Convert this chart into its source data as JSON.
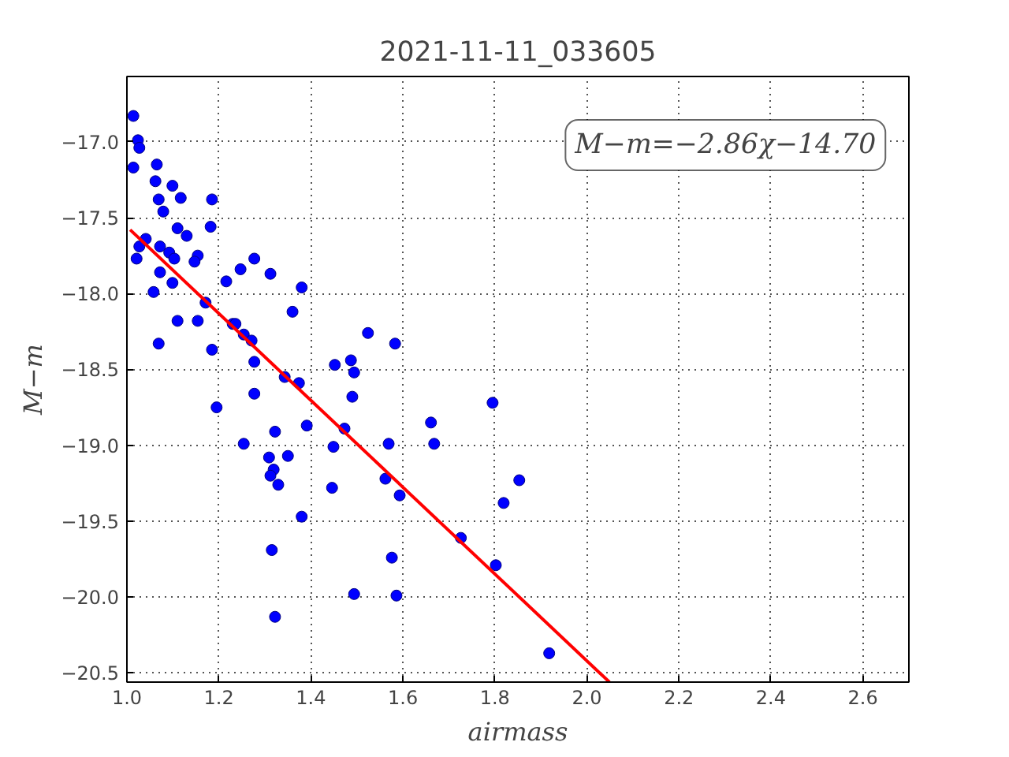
{
  "chart_data": {
    "type": "scatter",
    "title": "2021-11-11_033605",
    "xlabel": "airmass",
    "ylabel": "M−m",
    "xlim": [
      1.0,
      2.7
    ],
    "ylim": [
      -20.56,
      -16.57
    ],
    "xticks": [
      {
        "value": 1.0,
        "label": "1.0"
      },
      {
        "value": 1.2,
        "label": "1.2"
      },
      {
        "value": 1.4,
        "label": "1.4"
      },
      {
        "value": 1.6,
        "label": "1.6"
      },
      {
        "value": 1.8,
        "label": "1.8"
      },
      {
        "value": 2.0,
        "label": "2.0"
      },
      {
        "value": 2.2,
        "label": "2.2"
      },
      {
        "value": 2.4,
        "label": "2.4"
      },
      {
        "value": 2.6,
        "label": "2.6"
      }
    ],
    "yticks": [
      {
        "value": -17.0,
        "label": "−17.0"
      },
      {
        "value": -17.5,
        "label": "−17.5"
      },
      {
        "value": -18.0,
        "label": "−18.0"
      },
      {
        "value": -18.5,
        "label": "−18.5"
      },
      {
        "value": -19.0,
        "label": "−19.0"
      },
      {
        "value": -19.5,
        "label": "−19.5"
      },
      {
        "value": -20.0,
        "label": "−20.0"
      },
      {
        "value": -20.5,
        "label": "−20.5"
      }
    ],
    "grid": true,
    "annotations": [
      "M−m=−2.86χ−14.70"
    ],
    "series": [
      {
        "color": "#0000ff",
        "marker": "circle",
        "x": [
          1.014,
          1.024,
          1.027,
          1.014,
          1.065,
          1.062,
          1.099,
          1.069,
          1.079,
          1.117,
          1.185,
          1.11,
          1.182,
          1.13,
          1.041,
          1.027,
          1.021,
          1.072,
          1.092,
          1.103,
          1.154,
          1.147,
          1.072,
          1.099,
          1.058,
          1.216,
          1.247,
          1.277,
          1.312,
          1.38,
          1.171,
          1.11,
          1.154,
          1.185,
          1.069,
          1.23,
          1.236,
          1.254,
          1.271,
          1.36,
          1.524,
          1.583,
          1.277,
          1.343,
          1.374,
          1.452,
          1.487,
          1.494,
          1.277,
          1.195,
          1.49,
          1.391,
          1.473,
          1.661,
          1.795,
          1.322,
          1.254,
          1.449,
          1.569,
          1.668,
          1.309,
          1.35,
          1.319,
          1.312,
          1.329,
          1.562,
          1.593,
          1.446,
          1.853,
          1.819,
          1.38,
          1.726,
          1.315,
          1.576,
          1.802,
          1.494,
          1.586,
          1.322,
          1.918
        ],
        "values": [
          -16.83,
          -16.99,
          -17.04,
          -17.17,
          -17.15,
          -17.26,
          -17.29,
          -17.38,
          -17.46,
          -17.37,
          -17.38,
          -17.57,
          -17.56,
          -17.62,
          -17.64,
          -17.69,
          -17.77,
          -17.69,
          -17.73,
          -17.77,
          -17.75,
          -17.79,
          -17.86,
          -17.93,
          -17.99,
          -17.92,
          -17.84,
          -17.77,
          -17.87,
          -17.96,
          -18.06,
          -18.18,
          -18.18,
          -18.37,
          -18.33,
          -18.2,
          -18.2,
          -18.27,
          -18.31,
          -18.12,
          -18.26,
          -18.33,
          -18.45,
          -18.55,
          -18.59,
          -18.47,
          -18.44,
          -18.52,
          -18.66,
          -18.75,
          -18.68,
          -18.87,
          -18.89,
          -18.85,
          -18.72,
          -18.91,
          -18.99,
          -19.01,
          -18.99,
          -18.99,
          -19.08,
          -19.07,
          -19.16,
          -19.2,
          -19.26,
          -19.22,
          -19.33,
          -19.28,
          -19.23,
          -19.38,
          -19.47,
          -19.61,
          -19.69,
          -19.74,
          -19.79,
          -19.98,
          -19.99,
          -20.13,
          -20.37
        ]
      },
      {
        "type": "line",
        "marker": "none",
        "color": "#ff0000",
        "x": [
          1.007,
          2.049
        ],
        "values": [
          -17.58,
          -20.56
        ]
      }
    ]
  }
}
